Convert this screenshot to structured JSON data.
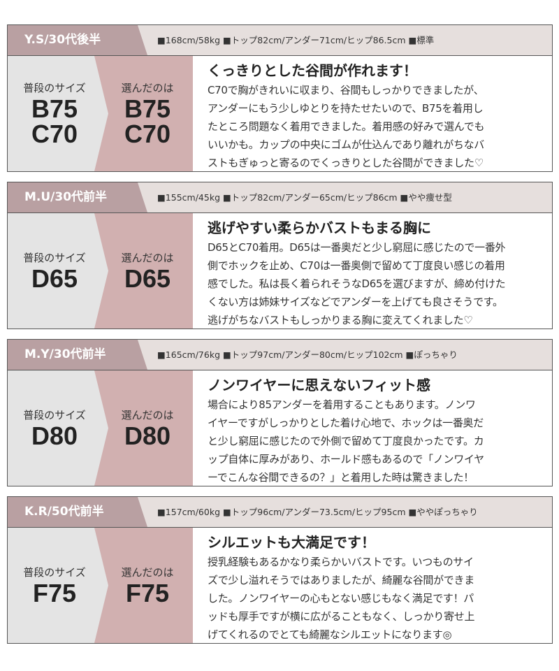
{
  "labels": {
    "usual": "普段のサイズ",
    "chosen": "選んだのは"
  },
  "colors": {
    "name_tag": "#b9a0a2",
    "stats_bar": "#e6dfdd",
    "usual_box": "#e4e4e4",
    "chosen_box": "#d1b0b0"
  },
  "reviews": [
    {
      "name": "Y.S/30代後半",
      "stats": "■168cm/58kg ■トップ82cm/アンダー71cm/ヒップ86.5cm ■標準",
      "usual_sizes": [
        "B75",
        "C70"
      ],
      "chosen_sizes": [
        "B75",
        "C70"
      ],
      "title": "くっきりとした谷間が作れます！",
      "lines": [
        "C70で胸がきれいに収まり、谷間もしっかりできましたが、",
        "アンダーにもう少しゆとりを持たせたいので、B75を着用し",
        "たところ問題なく着用できました。着用感の好みで選んでも",
        "いいかも。カップの中央にゴムが仕込んであり離れがちなバ",
        "ストもぎゅっと寄るのでくっきりとした谷間ができました♡"
      ]
    },
    {
      "name": "M.U/30代前半",
      "stats": "■155cm/45kg ■トップ82cm/アンダー65cm/ヒップ86cm ■やや痩せ型",
      "usual_sizes": [
        "D65"
      ],
      "chosen_sizes": [
        "D65"
      ],
      "title": "逃げやすい柔らかバストもまる胸に",
      "lines": [
        "D65とC70着用。D65は一番奥だと少し窮屈に感じたので一番外",
        "側でホックを止め、C70は一番奥側で留めて丁度良い感じの着用",
        "感でした。私は長く着られそうなD65を選びますが、締め付けた",
        "くない方は姉妹サイズなどでアンダーを上げても良さそうです。",
        "逃げがちなバストもしっかりまる胸に変えてくれました♡"
      ]
    },
    {
      "name": "M.Y/30代前半",
      "stats": "■165cm/76kg ■トップ97cm/アンダー80cm/ヒップ102cm ■ぽっちゃり",
      "usual_sizes": [
        "D80"
      ],
      "chosen_sizes": [
        "D80"
      ],
      "title": "ノンワイヤーに思えないフィット感",
      "lines": [
        "場合により85アンダーを着用することもあります。ノンワ",
        "イヤーですがしっかりとした着け心地で、ホックは一番奥だ",
        "と少し窮屈に感じたので外側で留めて丁度良かったです。カ",
        "ップ自体に厚みがあり、ホールド感もあるので「ノンワイヤ",
        "ーでこんな谷間できるの？」と着用した時は驚きました！"
      ]
    },
    {
      "name": "K.R/50代前半",
      "stats": "■157cm/60kg ■トップ96cm/アンダー73.5cm/ヒップ95cm ■ややぽっちゃり",
      "usual_sizes": [
        "F75"
      ],
      "chosen_sizes": [
        "F75"
      ],
      "title": "シルエットも大満足です！",
      "lines": [
        "授乳経験もあるかなり柔らかいバストです。いつものサイ",
        "ズで少し溢れそうではありましたが、綺麗な谷間ができま",
        "した。ノンワイヤーの心もとない感じもなく満足です！パ",
        "ッドも厚手ですが横に広がることもなく、しっかり寄せ上",
        "げてくれるのでとても綺麗なシルエットになります◎"
      ]
    }
  ]
}
